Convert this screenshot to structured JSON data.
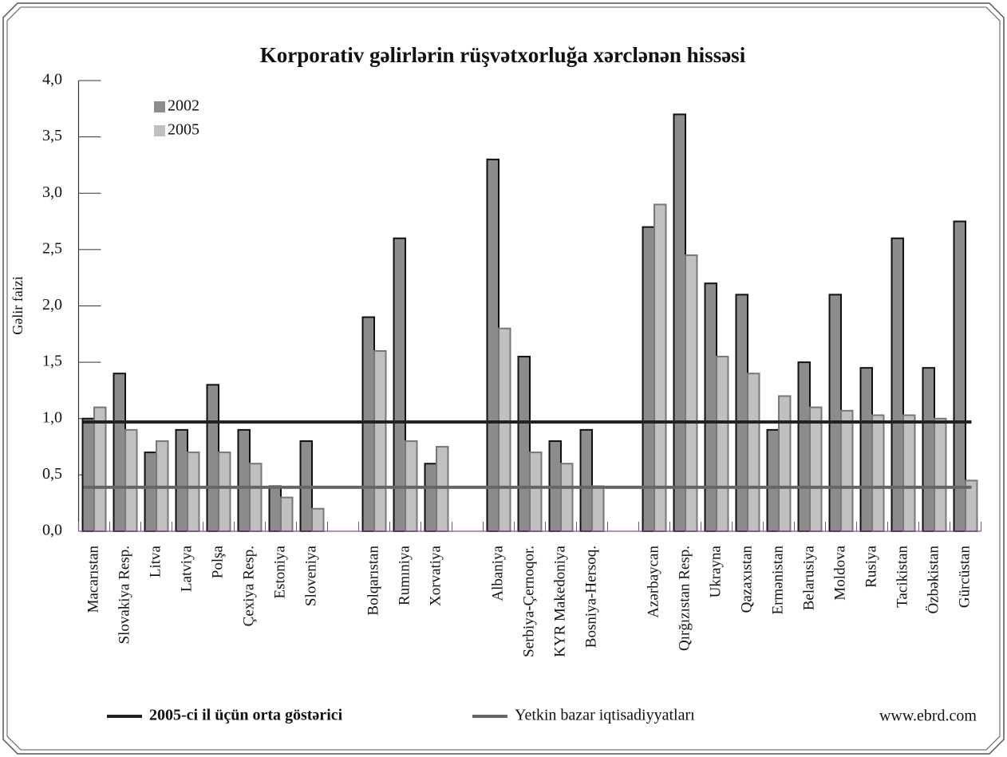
{
  "chart_data": {
    "type": "bar",
    "title": "Korporativ gəlirlərin rüşvətxorluğa xərclənən hissəsi",
    "y_label": "Gəlir faizi",
    "source": "www.ebrd.com",
    "categories": [
      "Macarıstan",
      "Slovakiya Resp.",
      "Litva",
      "Latviya",
      "Polşa",
      "Çexiya Resp.",
      "Estoniya",
      "Sloveniya",
      null,
      "Bolqarıstan",
      "Rumıniya",
      "Xorvatiya",
      null,
      "Albaniya",
      "Serbiya-Çernoqor.",
      "KYR Makedoniya",
      "Bosniya-Hersoq.",
      null,
      "Azərbaycan",
      "Qırğızıstan Resp.",
      "Ukrayna",
      "Qazaxıstan",
      "Ermənistan",
      "Belarusiya",
      "Moldova",
      "Rusiya",
      "Tacikistan",
      "Özbəkistan",
      "Gürcüstan"
    ],
    "series": [
      {
        "name": "2002",
        "color": "#8c8c8c",
        "values": [
          1.0,
          1.4,
          0.7,
          0.9,
          1.3,
          0.9,
          0.4,
          0.8,
          null,
          1.9,
          2.6,
          0.6,
          null,
          3.3,
          1.55,
          0.8,
          0.9,
          null,
          2.7,
          3.7,
          2.2,
          2.1,
          0.9,
          1.5,
          2.1,
          1.45,
          2.6,
          1.45,
          2.75
        ]
      },
      {
        "name": "2005",
        "color": "#c0c0c0",
        "values": [
          1.1,
          0.9,
          0.8,
          0.7,
          0.7,
          0.6,
          0.3,
          0.2,
          null,
          1.6,
          0.8,
          0.75,
          null,
          1.8,
          0.7,
          0.6,
          0.4,
          null,
          2.9,
          2.45,
          1.55,
          1.4,
          1.2,
          1.1,
          1.07,
          1.03,
          1.03,
          1.0,
          0.45
        ]
      }
    ],
    "reference_lines": [
      {
        "name": "2005-ci il üçün orta göstərici",
        "color": "#222222",
        "value": 0.97
      },
      {
        "name": "Yetkin bazar iqtisadiyyatları",
        "color": "#666666",
        "value": 0.39
      }
    ],
    "ylim": [
      0,
      4
    ],
    "yticks": [
      {
        "value": 0,
        "label": "0,0"
      },
      {
        "value": 0.5,
        "label": "0,5"
      },
      {
        "value": 1,
        "label": "1,0"
      },
      {
        "value": 1.5,
        "label": "1,5"
      },
      {
        "value": 2,
        "label": "2,0"
      },
      {
        "value": 2.5,
        "label": "2,5"
      },
      {
        "value": 3,
        "label": "3,0"
      },
      {
        "value": 3.5,
        "label": "3,5"
      },
      {
        "value": 4,
        "label": "4,0"
      }
    ],
    "legend": "top-left"
  }
}
